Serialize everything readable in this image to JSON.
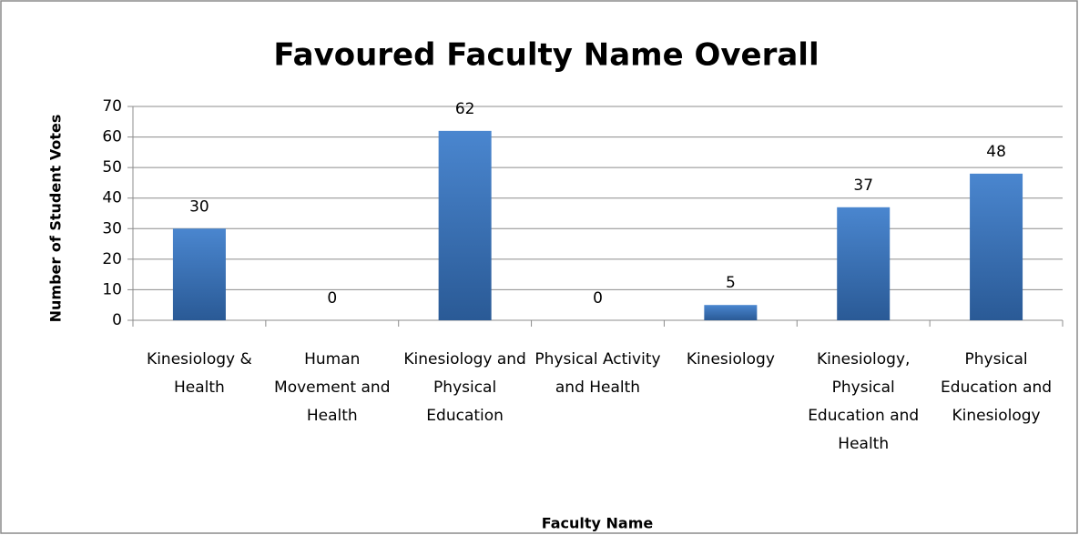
{
  "chart_data": {
    "type": "bar",
    "title": "Favoured Faculty Name Overall",
    "x_label": "Faculty Name",
    "y_label": "Number of Student Votes",
    "categories": [
      "Kinesiology & Health",
      "Human Movement and Health",
      "Kinesiology and Physical Education",
      "Physical Activity and Health",
      "Kinesiology",
      "Kinesiology, Physical Education and Health",
      "Physical Education and Kinesiology"
    ],
    "values": [
      30,
      0,
      62,
      0,
      5,
      37,
      48
    ],
    "color": "#4f81bd",
    "ylim": [
      0,
      70
    ],
    "yticks": [
      0,
      10,
      20,
      30,
      40,
      50,
      60,
      70
    ],
    "grid": true
  }
}
